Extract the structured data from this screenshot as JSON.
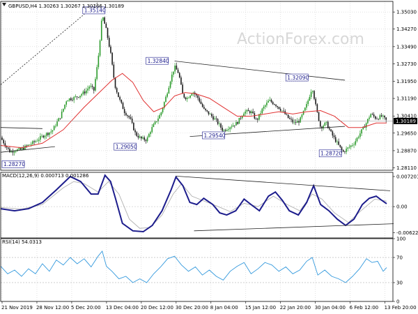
{
  "header": {
    "price": "GBPUSD,H4 1.30263 1.30267 1.30166 1.30189",
    "macd": "MACD(12,26,9) 0.000713 0.001286",
    "rsi": "RSI(14) 54.0313"
  },
  "watermark": "ActionForex.com",
  "colors": {
    "bull": "#2a9a2a",
    "bear": "#1a1a1a",
    "ma": "#e03030",
    "macd": "#1c1c8c",
    "signal": "#b0b0b0",
    "rsi": "#3399dd",
    "label_border": "#1a1a8c",
    "grid": "#cfcfcf"
  },
  "chart_data": [
    {
      "type": "candlestick",
      "panel": "price",
      "ylim": [
        1.28,
        1.355
      ],
      "y_ticks": [
        "1.35030",
        "1.34270",
        "1.33490",
        "1.32730",
        "1.31950",
        "1.31190",
        "1.30410",
        "1.29650",
        "1.28870",
        "1.28110"
      ],
      "current_price": "1.30189",
      "x_tick_labels": [
        "21 Nov 2019",
        "28 Nov 12:00",
        "5 Dec 20:00",
        "13 Dec 04:00",
        "20 Dec 12:00",
        "30 Dec 20:00",
        "8 Jan 04:00",
        "15 Jan 12:00",
        "22 Jan 20:00",
        "30 Jan 04:00",
        "6 Feb 12:00",
        "13 Feb 20:00"
      ],
      "annotations": [
        "1.35140",
        "1.32840",
        "1.32090",
        "1.29540",
        "1.29050",
        "1.28720",
        "1.28270"
      ],
      "close_path": [
        [
          0,
          1.2945
        ],
        [
          8,
          1.2905
        ],
        [
          14,
          1.288
        ],
        [
          20,
          1.289
        ],
        [
          28,
          1.289
        ],
        [
          36,
          1.2905
        ],
        [
          48,
          1.2925
        ],
        [
          62,
          1.2955
        ],
        [
          74,
          1.2975
        ],
        [
          86,
          1.304
        ],
        [
          95,
          1.3115
        ],
        [
          104,
          1.312
        ],
        [
          112,
          1.313
        ],
        [
          122,
          1.315
        ],
        [
          128,
          1.3175
        ],
        [
          134,
          1.3155
        ],
        [
          140,
          1.329
        ],
        [
          146,
          1.349
        ],
        [
          152,
          1.342
        ],
        [
          158,
          1.332
        ],
        [
          164,
          1.318
        ],
        [
          170,
          1.312
        ],
        [
          178,
          1.306
        ],
        [
          186,
          1.303
        ],
        [
          194,
          1.296
        ],
        [
          202,
          1.294
        ],
        [
          210,
          1.2935
        ],
        [
          216,
          1.298
        ],
        [
          222,
          1.301
        ],
        [
          230,
          1.305
        ],
        [
          238,
          1.313
        ],
        [
          244,
          1.32
        ],
        [
          250,
          1.326
        ],
        [
          256,
          1.323
        ],
        [
          262,
          1.313
        ],
        [
          268,
          1.312
        ],
        [
          276,
          1.315
        ],
        [
          284,
          1.312
        ],
        [
          292,
          1.307
        ],
        [
          300,
          1.305
        ],
        [
          310,
          1.302
        ],
        [
          320,
          1.2975
        ],
        [
          330,
          1.2995
        ],
        [
          340,
          1.301
        ],
        [
          350,
          1.306
        ],
        [
          360,
          1.306
        ],
        [
          368,
          1.302
        ],
        [
          376,
          1.307
        ],
        [
          386,
          1.311
        ],
        [
          396,
          1.309
        ],
        [
          406,
          1.306
        ],
        [
          414,
          1.303
        ],
        [
          422,
          1.301
        ],
        [
          430,
          1.302
        ],
        [
          440,
          1.309
        ],
        [
          448,
          1.317
        ],
        [
          454,
          1.307
        ],
        [
          460,
          1.299
        ],
        [
          468,
          1.301
        ],
        [
          476,
          1.296
        ],
        [
          484,
          1.292
        ],
        [
          492,
          1.288
        ],
        [
          500,
          1.29
        ],
        [
          508,
          1.292
        ],
        [
          516,
          1.296
        ],
        [
          524,
          1.3
        ],
        [
          532,
          1.305
        ],
        [
          540,
          1.303
        ],
        [
          548,
          1.304
        ],
        [
          555,
          1.3019
        ]
      ],
      "ma_path": [
        [
          0,
          1.291
        ],
        [
          30,
          1.29
        ],
        [
          60,
          1.292
        ],
        [
          90,
          1.298
        ],
        [
          120,
          1.308
        ],
        [
          140,
          1.314
        ],
        [
          160,
          1.32
        ],
        [
          175,
          1.323
        ],
        [
          190,
          1.319
        ],
        [
          205,
          1.311
        ],
        [
          220,
          1.306
        ],
        [
          235,
          1.308
        ],
        [
          250,
          1.313
        ],
        [
          265,
          1.3145
        ],
        [
          280,
          1.314
        ],
        [
          300,
          1.312
        ],
        [
          320,
          1.308
        ],
        [
          340,
          1.304
        ],
        [
          360,
          1.304
        ],
        [
          380,
          1.305
        ],
        [
          400,
          1.306
        ],
        [
          420,
          1.305
        ],
        [
          440,
          1.306
        ],
        [
          460,
          1.3065
        ],
        [
          480,
          1.304
        ],
        [
          500,
          1.299
        ],
        [
          520,
          1.299
        ],
        [
          540,
          1.301
        ],
        [
          555,
          1.301
        ]
      ]
    },
    {
      "type": "line",
      "panel": "macd",
      "ylim": [
        -0.0075,
        0.0082
      ],
      "y_ticks": [
        "0.007201",
        "0.00",
        "-0.006229"
      ],
      "series": [
        {
          "values_path": [
            [
              0,
              -0.0005
            ],
            [
              20,
              -0.001
            ],
            [
              40,
              -0.0005
            ],
            [
              60,
              0.001
            ],
            [
              80,
              0.004
            ],
            [
              100,
              0.0072
            ],
            [
              115,
              0.006
            ],
            [
              130,
              0.003
            ],
            [
              140,
              0.003
            ],
            [
              150,
              0.0075
            ],
            [
              158,
              0.006
            ],
            [
              165,
              0.002
            ],
            [
              175,
              -0.004
            ],
            [
              190,
              -0.0058
            ],
            [
              205,
              -0.006
            ],
            [
              218,
              -0.0045
            ],
            [
              232,
              -0.001
            ],
            [
              245,
              0.004
            ],
            [
              252,
              0.0071
            ],
            [
              262,
              0.005
            ],
            [
              272,
              0.001
            ],
            [
              282,
              0.0005
            ],
            [
              292,
              0.002
            ],
            [
              305,
              0.0005
            ],
            [
              315,
              -0.0015
            ],
            [
              325,
              -0.002
            ],
            [
              338,
              -0.001
            ],
            [
              350,
              0.0018
            ],
            [
              360,
              0.0005
            ],
            [
              372,
              -0.001
            ],
            [
              385,
              0.0025
            ],
            [
              395,
              0.0035
            ],
            [
              405,
              0.0015
            ],
            [
              415,
              -0.001
            ],
            [
              428,
              -0.002
            ],
            [
              440,
              0.001
            ],
            [
              450,
              0.005
            ],
            [
              460,
              0.0005
            ],
            [
              472,
              -0.001
            ],
            [
              484,
              -0.003
            ],
            [
              496,
              -0.0045
            ],
            [
              508,
              -0.003
            ],
            [
              520,
              0.0005
            ],
            [
              530,
              0.002
            ],
            [
              540,
              0.0025
            ],
            [
              548,
              0.0015
            ],
            [
              555,
              0.0007
            ]
          ]
        },
        {
          "values_path": [
            [
              0,
              -0.0002
            ],
            [
              30,
              -0.0006
            ],
            [
              60,
              0.0005
            ],
            [
              90,
              0.0045
            ],
            [
              105,
              0.006
            ],
            [
              120,
              0.0055
            ],
            [
              140,
              0.0035
            ],
            [
              155,
              0.006
            ],
            [
              170,
              0.003
            ],
            [
              185,
              -0.003
            ],
            [
              200,
              -0.0052
            ],
            [
              215,
              -0.005
            ],
            [
              232,
              -0.002
            ],
            [
              248,
              0.003
            ],
            [
              260,
              0.0055
            ],
            [
              275,
              0.0025
            ],
            [
              290,
              0.0015
            ],
            [
              310,
              0.0002
            ],
            [
              330,
              -0.0012
            ],
            [
              350,
              0.0008
            ],
            [
              370,
              0.0
            ],
            [
              392,
              0.0025
            ],
            [
              412,
              0.0005
            ],
            [
              430,
              -0.001
            ],
            [
              448,
              0.003
            ],
            [
              462,
              0.0018
            ],
            [
              480,
              -0.0015
            ],
            [
              500,
              -0.0038
            ],
            [
              518,
              -0.001
            ],
            [
              538,
              0.0018
            ],
            [
              555,
              0.0013
            ]
          ]
        }
      ],
      "trendlines": [
        [
          [
            252,
            0.0073
          ],
          [
            560,
            0.0038
          ]
        ],
        [
          [
            278,
            -0.0058
          ],
          [
            565,
            -0.0041
          ]
        ]
      ]
    },
    {
      "type": "line",
      "panel": "rsi",
      "ylim": [
        0,
        100
      ],
      "y_ticks": [
        "100",
        "70",
        "30",
        "0"
      ],
      "levels": [
        70,
        30
      ],
      "series": [
        {
          "values_path": [
            [
              0,
              56
            ],
            [
              10,
              44
            ],
            [
              20,
              50
            ],
            [
              30,
              40
            ],
            [
              40,
              52
            ],
            [
              50,
              44
            ],
            [
              60,
              60
            ],
            [
              70,
              48
            ],
            [
              80,
              66
            ],
            [
              90,
              58
            ],
            [
              100,
              70
            ],
            [
              110,
              60
            ],
            [
              120,
              68
            ],
            [
              130,
              55
            ],
            [
              140,
              72
            ],
            [
              146,
              80
            ],
            [
              152,
              56
            ],
            [
              160,
              48
            ],
            [
              170,
              36
            ],
            [
              180,
              40
            ],
            [
              190,
              30
            ],
            [
              200,
              36
            ],
            [
              210,
              30
            ],
            [
              220,
              44
            ],
            [
              230,
              55
            ],
            [
              240,
              68
            ],
            [
              250,
              72
            ],
            [
              260,
              58
            ],
            [
              270,
              48
            ],
            [
              280,
              55
            ],
            [
              290,
              42
            ],
            [
              300,
              50
            ],
            [
              310,
              40
            ],
            [
              320,
              34
            ],
            [
              330,
              48
            ],
            [
              340,
              56
            ],
            [
              350,
              62
            ],
            [
              360,
              44
            ],
            [
              370,
              52
            ],
            [
              380,
              62
            ],
            [
              390,
              58
            ],
            [
              400,
              48
            ],
            [
              410,
              55
            ],
            [
              420,
              44
            ],
            [
              430,
              50
            ],
            [
              440,
              64
            ],
            [
              448,
              70
            ],
            [
              456,
              42
            ],
            [
              466,
              50
            ],
            [
              476,
              40
            ],
            [
              486,
              36
            ],
            [
              496,
              30
            ],
            [
              506,
              40
            ],
            [
              516,
              52
            ],
            [
              526,
              68
            ],
            [
              534,
              62
            ],
            [
              542,
              64
            ],
            [
              550,
              48
            ],
            [
              555,
              54
            ]
          ]
        }
      ]
    }
  ]
}
